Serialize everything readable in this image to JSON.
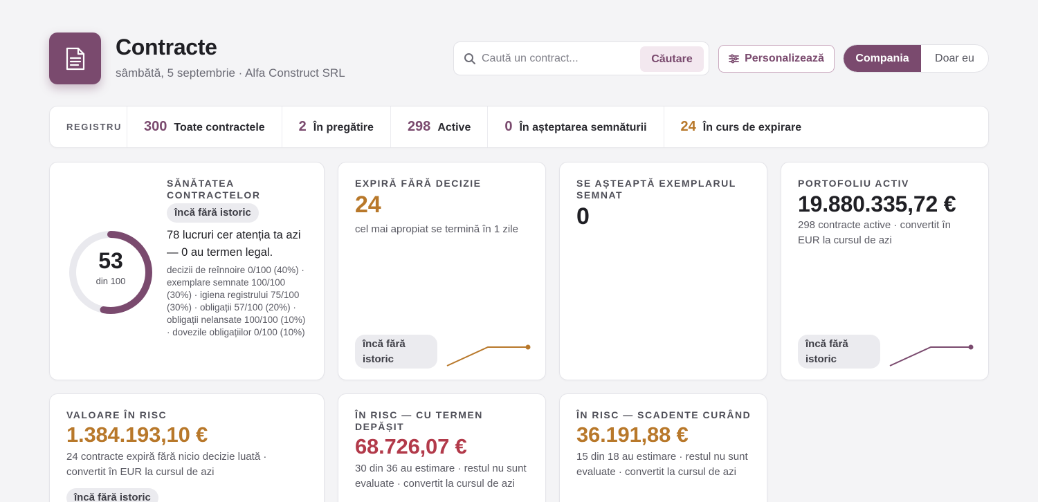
{
  "header": {
    "title": "Contracte",
    "subtitle": "sâmbătă, 5 septembrie · Alfa Construct SRL",
    "search_placeholder": "Caută un contract...",
    "search_button": "Căutare",
    "customize_button": "Personalizează",
    "scope_options": [
      "Compania",
      "Doar eu"
    ],
    "scope_selected": "Compania"
  },
  "registry": {
    "label": "REGISTRU",
    "items": [
      {
        "count": "300",
        "label": "Toate contractele"
      },
      {
        "count": "2",
        "label": "În pregătire"
      },
      {
        "count": "298",
        "label": "Active"
      },
      {
        "count": "0",
        "label": "În așteptarea semnăturii"
      },
      {
        "count": "24",
        "label": "În curs de expirare"
      }
    ]
  },
  "health": {
    "label": "SĂNĂTATEA CONTRACTELOR",
    "score": "53",
    "score_of": "din 100",
    "score_fraction": 0.53,
    "badge": "încă fără istoric",
    "headline": "78 lucruri cer atenția ta azi — 0 au termen legal.",
    "details": "decizii de reînnoire 0/100 (40%) · exemplare semnate 100/100 (30%) · igiena registrului 75/100 (30%) · obligații 57/100 (20%) · obligații nelansate 100/100 (10%) · dovezile obligațiilor 0/100 (10%)"
  },
  "expiring": {
    "label": "EXPIRĂ FĂRĂ DECIZIE",
    "value": "24",
    "desc": "cel mai apropiat se termină în 1 zile",
    "badge": "încă fără istoric"
  },
  "awaiting": {
    "label": "SE AȘTEAPTĂ EXEMPLARUL SEMNAT",
    "value": "0"
  },
  "portfolio": {
    "label": "PORTOFOLIU ACTIV",
    "value": "19.880.335,72 €",
    "desc": "298 contracte active · convertit în EUR la cursul de azi",
    "badge": "încă fără istoric"
  },
  "risk_value": {
    "label": "VALOARE ÎN RISC",
    "value": "1.384.193,10 €",
    "desc": "24 contracte expiră fără nicio decizie luată · convertit în EUR la cursul de azi",
    "badge": "încă fără istoric"
  },
  "risk_overdue": {
    "label": "ÎN RISC — CU TERMEN DEPĂȘIT",
    "value": "68.726,07 €",
    "desc": "30 din 36 au estimare · restul nu sunt evaluate · convertit la cursul de azi"
  },
  "risk_soon": {
    "label": "ÎN RISC — SCADENTE CURÂND",
    "value": "36.191,88 €",
    "desc": "15 din 18 au estimare · restul nu sunt evaluate · convertit la cursul de azi"
  },
  "colors": {
    "brand": "#7a4a6e",
    "warning": "#b8782a",
    "danger": "#b23a4a"
  }
}
